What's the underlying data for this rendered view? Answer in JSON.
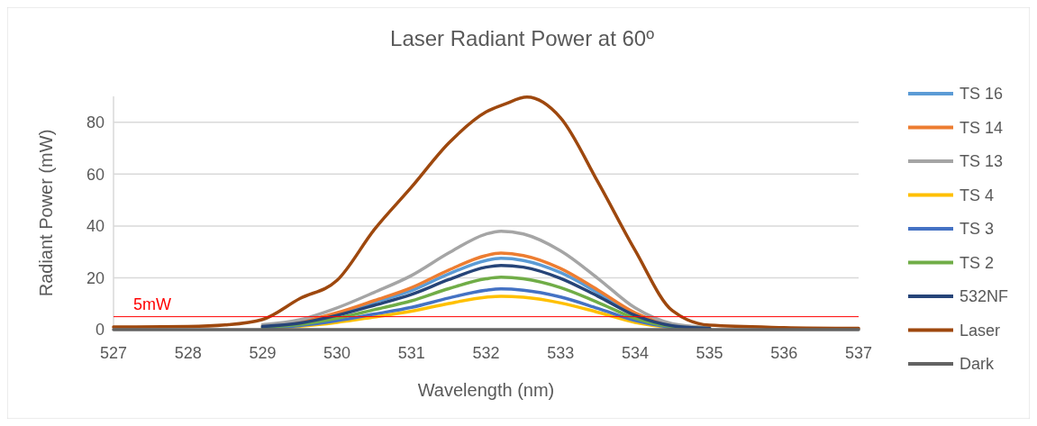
{
  "chart_data": {
    "type": "line",
    "title": "Laser Radiant Power at 60º",
    "xlabel": "Wavelength (nm)",
    "ylabel": "Radiant Power (mW)",
    "x": [
      527,
      528,
      529,
      529.5,
      530,
      530.5,
      531,
      531.5,
      532,
      532.2,
      532.5,
      533,
      533.5,
      534,
      534.5,
      535,
      536,
      537
    ],
    "xlim": [
      527,
      537
    ],
    "xticks": [
      527,
      528,
      529,
      530,
      531,
      532,
      533,
      534,
      535,
      536,
      537
    ],
    "ylim": [
      0,
      90
    ],
    "yticks": [
      0,
      20,
      40,
      60,
      80
    ],
    "grid": "y",
    "legend": "right",
    "line_style": "solid",
    "marker": "none",
    "ref_lines": [
      {
        "axis": "y",
        "value": 5,
        "label": "5mW",
        "color": "#ff0000"
      }
    ],
    "series": [
      {
        "name": "TS 16",
        "color": "#5b9bd5",
        "values": [
          null,
          null,
          null,
          null,
          6.1,
          10.5,
          15.1,
          21.5,
          26.7,
          27.5,
          26.7,
          22,
          14.3,
          6.1,
          1.7,
          null,
          null,
          null
        ]
      },
      {
        "name": "TS 14",
        "color": "#ed7d31",
        "values": [
          null,
          null,
          1.5,
          3,
          6.5,
          11.2,
          16.2,
          23,
          28.6,
          29.5,
          28.6,
          23.6,
          15.3,
          6.5,
          1.8,
          0.6,
          null,
          null
        ]
      },
      {
        "name": "TS 13",
        "color": "#a5a5a5",
        "values": [
          null,
          null,
          1.9,
          3.8,
          8.4,
          14.4,
          20.9,
          29.6,
          36.9,
          38,
          36.9,
          30.4,
          19.8,
          8.4,
          2.3,
          0.8,
          null,
          null
        ]
      },
      {
        "name": "TS 4",
        "color": "#ffc000",
        "values": [
          null,
          null,
          0.6,
          1.3,
          2.8,
          4.9,
          7.1,
          10.1,
          12.5,
          12.9,
          12.5,
          10.3,
          6.7,
          2.8,
          0.8,
          0.3,
          null,
          null
        ]
      },
      {
        "name": "TS 3",
        "color": "#4472c4",
        "values": [
          null,
          null,
          0.8,
          1.6,
          3.5,
          6,
          8.6,
          12.2,
          15.2,
          15.7,
          15.2,
          12.6,
          8.2,
          3.5,
          0.9,
          0.3,
          null,
          null
        ]
      },
      {
        "name": "TS 2",
        "color": "#70ad47",
        "values": [
          null,
          null,
          1,
          2,
          4.4,
          7.7,
          11.1,
          15.8,
          19.6,
          20.2,
          19.6,
          16.2,
          10.5,
          4.4,
          1.2,
          0.4,
          null,
          null
        ]
      },
      {
        "name": "532NF",
        "color": "#264478",
        "values": [
          null,
          null,
          1.2,
          2.5,
          5.5,
          9.4,
          13.6,
          19.3,
          24.1,
          24.8,
          24.1,
          19.8,
          12.9,
          5.5,
          1.5,
          0.5,
          null,
          null
        ]
      },
      {
        "name": "Laser",
        "color": "#9e480e",
        "x": [
          527,
          528,
          528.5,
          529,
          529.5,
          530,
          530.5,
          531,
          531.5,
          532,
          532.25,
          532.55,
          533,
          533.5,
          534,
          534.5,
          535,
          536,
          537
        ],
        "values": [
          1,
          1.2,
          1.8,
          3.9,
          12,
          19,
          38.6,
          55,
          72,
          84,
          87,
          89.7,
          81.7,
          57,
          30.6,
          7.3,
          1.7,
          0.8,
          0.5
        ]
      },
      {
        "name": "Dark",
        "color": "#636363",
        "values": [
          0,
          0,
          0,
          0,
          0,
          0,
          0,
          0,
          0,
          0,
          0,
          0,
          0,
          0,
          0,
          0,
          0,
          0
        ]
      }
    ]
  }
}
